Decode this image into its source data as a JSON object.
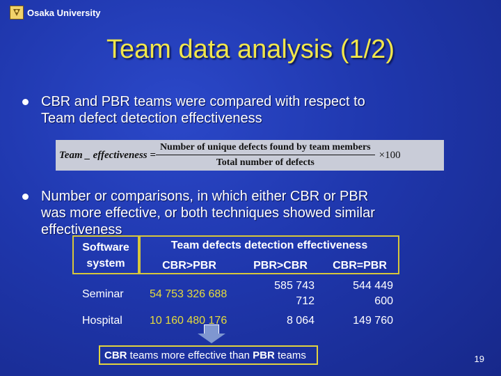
{
  "header": {
    "org": "Osaka University",
    "logo_icon": "university-crest-icon"
  },
  "title": "Team data analysis (1/2)",
  "bullets": [
    {
      "line1": "CBR and PBR teams were compared with respect to",
      "line2": "Team defect detection effectiveness"
    },
    {
      "line1": "Number or comparisons, in which either CBR or PBR",
      "line2": "was more effective, or both techniques showed similar",
      "line3": "effectiveness"
    }
  ],
  "formula": {
    "lhs": "Team _ effectiveness =",
    "numerator": "Number of unique defects found by team members",
    "denominator": "Total number of defects",
    "multiplier": "×100"
  },
  "table": {
    "system_header_1": "Software",
    "system_header_2": "system",
    "group_header": "Team defects detection effectiveness",
    "columns": [
      "CBR>PBR",
      "PBR>CBR",
      "CBR=PBR"
    ],
    "rows": [
      {
        "system": "Seminar",
        "cbr_gt_pbr": "54 753 326 688",
        "pbr_gt_cbr_1": "585 743",
        "pbr_gt_cbr_2": "712",
        "equal_1": "544 449",
        "equal_2": "600"
      },
      {
        "system": "Hospital",
        "cbr_gt_pbr": "10 160 480 176",
        "pbr_gt_cbr_1": "8 064",
        "pbr_gt_cbr_2": "",
        "equal_1": "149 760",
        "equal_2": ""
      }
    ]
  },
  "conclusion": {
    "prefix": "CBR",
    "mid": " teams more effective than ",
    "mid_bold": "PBR",
    "suffix": " teams"
  },
  "page_number": "19",
  "colors": {
    "background": "#1f37ad",
    "title": "#f1e64b",
    "accent_box": "#d7c63a"
  }
}
